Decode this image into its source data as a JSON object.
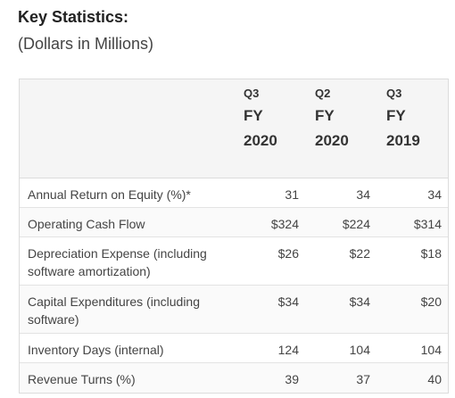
{
  "title": "Key Statistics:",
  "subtitle": "(Dollars in Millions)",
  "columns": [
    {
      "quarter": "Q3",
      "fy": "FY",
      "year": "2020"
    },
    {
      "quarter": "Q2",
      "fy": "FY",
      "year": "2020"
    },
    {
      "quarter": "Q3",
      "fy": "FY",
      "year": "2019"
    }
  ],
  "rows": [
    {
      "label": "Annual Return on Equity (%)*",
      "values": [
        "31",
        "34",
        "34"
      ]
    },
    {
      "label": "Operating Cash Flow",
      "values": [
        "$324",
        "$224",
        "$314"
      ]
    },
    {
      "label": "Depreciation Expense (including software amortization)",
      "values": [
        "$26",
        "$22",
        "$18"
      ]
    },
    {
      "label": "Capital Expenditures (including software)",
      "values": [
        "$34",
        "$34",
        "$20"
      ]
    },
    {
      "label": "Inventory Days (internal)",
      "values": [
        "124",
        "104",
        "104"
      ]
    },
    {
      "label": "Revenue Turns (%)",
      "values": [
        "39",
        "37",
        "40"
      ]
    }
  ]
}
